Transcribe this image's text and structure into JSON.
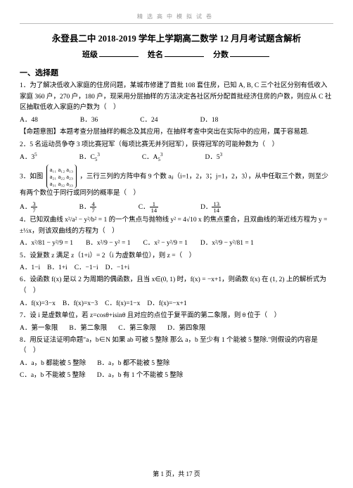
{
  "banner": "精选高中模拟试卷",
  "title": "永登县二中 2018-2019 学年上学期高二数学 12 月月考试题含解析",
  "meta": {
    "class_label": "班级",
    "name_label": "姓名",
    "score_label": "分数"
  },
  "section1": "一、选择题",
  "q1": {
    "text": "1．为了解决低收入家庭的住房问题，某城市修建了首批 108 套住房，已知 A, B, C 三个社区分别有低收入家庭 360 户，270 户，180 户，现采用分层抽样的方法决定各社区所分配首批经济住房的户数，则应从 C 社区抽取低收入家庭的户数为（　）",
    "A": "A．48",
    "B": "B．36",
    "C": "C．24",
    "D": "D．18",
    "note": "【命题意图】本题考查分层抽样的概念及其应用，在抽样考查中突出在实际中的应用，属于容易题."
  },
  "q2": {
    "text": "2．5 名运动员争夺 3 项比赛冠军（每项比赛无并列冠军），获得冠军的可能种数为（　）",
    "A": "A．3",
    "B": "B．C",
    "C": "C．A",
    "D": "D．5"
  },
  "q3": {
    "pre": "3．如图",
    "post": "，三行三列的方阵中有 9 个数 aᵢⱼ（i=1，2，3；j=1，2，3），从中任取三个数，则至少有两个数位于同行或同列的概率是（　）",
    "m1": "a₁₁ a₁₂ a₁₃",
    "m2": "a₂₁ a₂₂ a₂₃",
    "m3": "a₃₁ a₃₂ a₃₃",
    "A": "A．",
    "B": "B．",
    "C": "C．",
    "D": "D．",
    "fA_n": "3",
    "fA_d": "7",
    "fB_n": "4",
    "fB_d": "7",
    "fC_n": "1",
    "fC_d": "14",
    "fD_n": "13",
    "fD_d": "14"
  },
  "q4": {
    "text": "4．已知双曲线 x²/a² − y²/b² = 1 的一个焦点与抛物线 y² = 4√10 x 的焦点重合，且双曲线的渐近线方程为 y = ±⅓x，则该双曲线的方程为（　）",
    "A": "A．x²/81 − y²/9 = 1",
    "B": "B．x²/9 − y² = 1",
    "C": "C．x² − y²/9 = 1",
    "D": "D．x²/9 − y²/81 = 1"
  },
  "q5": {
    "text": "5．设复数 z 满足 z（1+i）= 2（i 为虚数单位），则 z =（　）",
    "A": "A．1−i",
    "B": "B．1+i",
    "C": "C．−1−i",
    "D": "D．−1+i"
  },
  "q6": {
    "text": "6．设函数 f(x) 是以 2 为周期的偶函数，且当 x∈(0, 1) 时，f(x) = −x+1，则函数 f(x) 在 (1, 2) 上的解析式为（　）",
    "A": "A．f(x)=3−x",
    "B": "B．f(x)=x−3",
    "C": "C．f(x)=1−x",
    "D": "D．f(x)=−x+1"
  },
  "q7": {
    "text": "7．设 i 是虚数单位，若 z=cosθ+isinθ 且对应的点位于复平面的第二象限，则 θ 位于（　）",
    "A": "A．第一象限",
    "B": "B．第二象限",
    "C": "C．第三象限",
    "D": "D．第四象限"
  },
  "q8": {
    "text": "8．用反证法证明命题\"a，b∈N 如果 ab 可被 5 整除 那么 a，b 至少有 1 个能被 5 整除.\"则假设的内容是（　）",
    "A": "A．a，b 都能被 5 整除",
    "B": "B．a，b 都不能被 5 整除",
    "C": "C．a，b 不能被 5 整除",
    "D": "D．a，b 有 1 个不能被 5 整除"
  },
  "footer": "第 1 页，共 17 页"
}
